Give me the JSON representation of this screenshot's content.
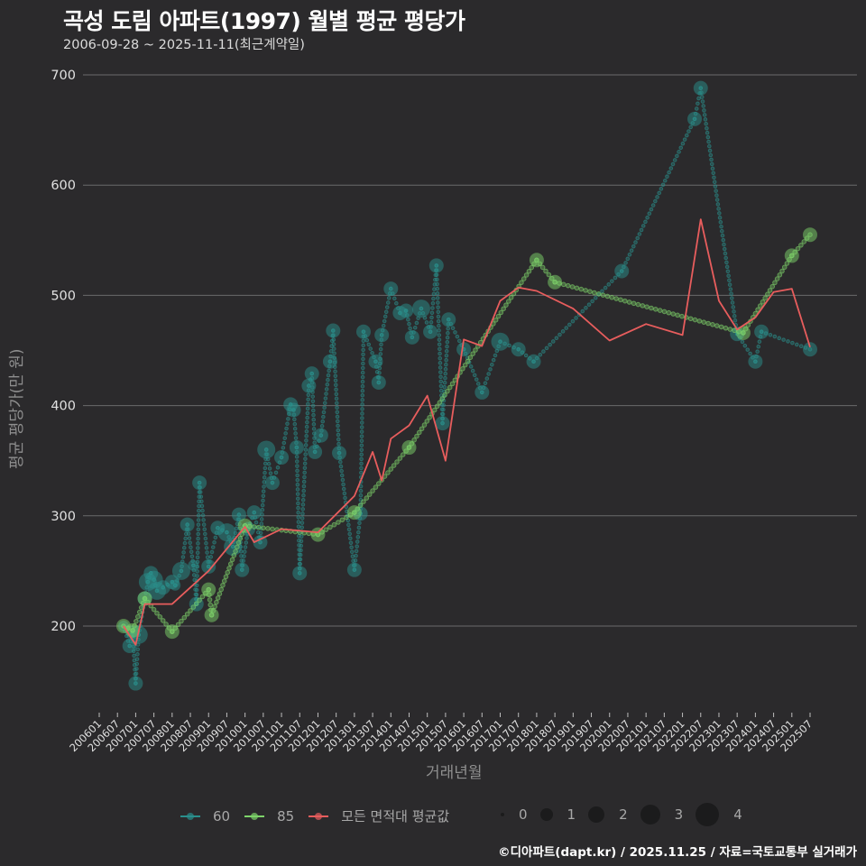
{
  "header": {
    "title": "곡성 도림 아파트(1997) 월별 평균 평당가",
    "subtitle": "2006-09-28 ~ 2025-11-11(최근계약일)"
  },
  "axes": {
    "ylabel": "평균 평당가(만 원)",
    "xlabel": "거래년월"
  },
  "legend": {
    "series": [
      {
        "label": "60",
        "color": "#2a8f8c"
      },
      {
        "label": "85",
        "color": "#7ed46a"
      },
      {
        "label": "모든 면적대 평균값",
        "color": "#e85d5d"
      }
    ],
    "sizes": [
      {
        "label": "0",
        "d": 4
      },
      {
        "label": "1",
        "d": 14
      },
      {
        "label": "2",
        "d": 18
      },
      {
        "label": "3",
        "d": 22
      },
      {
        "label": "4",
        "d": 26
      }
    ]
  },
  "footer": {
    "credit": "©디아파트(dapt.kr) / 2025.11.25 / 자료=국토교통부 실거래가"
  },
  "chart_data": {
    "type": "scatter",
    "title": "곡성 도림 아파트(1997) 월별 평균 평당가",
    "subtitle": "2006-09-28 ~ 2025-11-11(최근계약일)",
    "xlabel": "거래년월",
    "ylabel": "평균 평당가(만 원)",
    "ylim": [
      120,
      710
    ],
    "yticks": [
      200,
      300,
      400,
      500,
      600,
      700
    ],
    "grid": true,
    "legend_position": "bottom",
    "x_ticks": [
      "200601",
      "200607",
      "200701",
      "200707",
      "200801",
      "200807",
      "200901",
      "200907",
      "201001",
      "201007",
      "201101",
      "201107",
      "201201",
      "201207",
      "201301",
      "201307",
      "201401",
      "201407",
      "201501",
      "201507",
      "201601",
      "201607",
      "201701",
      "201707",
      "201801",
      "201807",
      "201901",
      "201907",
      "202001",
      "202007",
      "202101",
      "202107",
      "202201",
      "202207",
      "202301",
      "202307",
      "202401",
      "202407",
      "202501",
      "202507"
    ],
    "series": [
      {
        "name": "60",
        "color": "#2a8f8c",
        "points": [
          [
            "200609",
            200,
            1
          ],
          [
            "200611",
            182,
            2
          ],
          [
            "200612",
            194,
            2
          ],
          [
            "200701",
            148,
            2
          ],
          [
            "200702",
            192,
            3
          ],
          [
            "200704",
            225,
            2
          ],
          [
            "200705",
            240,
            3
          ],
          [
            "200706",
            248,
            2
          ],
          [
            "200707",
            242,
            3
          ],
          [
            "200708",
            232,
            3
          ],
          [
            "200710",
            235,
            2
          ],
          [
            "200801",
            240,
            2
          ],
          [
            "200802",
            237,
            1
          ],
          [
            "200804",
            250,
            3
          ],
          [
            "200806",
            292,
            2
          ],
          [
            "200808",
            255,
            1
          ],
          [
            "200809",
            220,
            2
          ],
          [
            "200810",
            330,
            2
          ],
          [
            "200901",
            254,
            2
          ],
          [
            "200904",
            289,
            2
          ],
          [
            "200907",
            285,
            3
          ],
          [
            "200909",
            272,
            3
          ],
          [
            "200911",
            301,
            2
          ],
          [
            "200912",
            251,
            2
          ],
          [
            "201002",
            288,
            2
          ],
          [
            "201004",
            303,
            2
          ],
          [
            "201006",
            276,
            2
          ],
          [
            "201008",
            360,
            3
          ],
          [
            "201010",
            330,
            2
          ],
          [
            "201101",
            353,
            2
          ],
          [
            "201104",
            401,
            2
          ],
          [
            "201105",
            396,
            2
          ],
          [
            "201106",
            362,
            2
          ],
          [
            "201107",
            248,
            2
          ],
          [
            "201110",
            418,
            2
          ],
          [
            "201111",
            429,
            2
          ],
          [
            "201112",
            358,
            2
          ],
          [
            "201202",
            373,
            2
          ],
          [
            "201205",
            440,
            2
          ],
          [
            "201206",
            468,
            2
          ],
          [
            "201208",
            357,
            2
          ],
          [
            "201301",
            251,
            2
          ],
          [
            "201303",
            302,
            2
          ],
          [
            "201304",
            467,
            2
          ],
          [
            "201308",
            440,
            2
          ],
          [
            "201309",
            421,
            2
          ],
          [
            "201310",
            464,
            2
          ],
          [
            "201401",
            506,
            2
          ],
          [
            "201404",
            484,
            2
          ],
          [
            "201406",
            486,
            2
          ],
          [
            "201408",
            462,
            2
          ],
          [
            "201411",
            488,
            3
          ],
          [
            "201502",
            467,
            2
          ],
          [
            "201504",
            527,
            2
          ],
          [
            "201506",
            384,
            2
          ],
          [
            "201508",
            478,
            2
          ],
          [
            "201601",
            451,
            2
          ],
          [
            "201607",
            412,
            2
          ],
          [
            "201701",
            458,
            3
          ],
          [
            "201707",
            451,
            2
          ],
          [
            "201712",
            440,
            2
          ],
          [
            "202005",
            522,
            2
          ],
          [
            "202205",
            660,
            2
          ],
          [
            "202207",
            688,
            2
          ],
          [
            "202307",
            465,
            2
          ],
          [
            "202401",
            440,
            2
          ],
          [
            "202403",
            467,
            2
          ],
          [
            "202507",
            451,
            2
          ]
        ]
      },
      {
        "name": "85",
        "color": "#7ed46a",
        "points": [
          [
            "200609",
            200,
            2
          ],
          [
            "200612",
            196,
            2
          ],
          [
            "200704",
            225,
            2
          ],
          [
            "200801",
            195,
            2
          ],
          [
            "200901",
            233,
            2
          ],
          [
            "200902",
            210,
            2
          ],
          [
            "201001",
            291,
            2
          ],
          [
            "201201",
            283,
            2
          ],
          [
            "201301",
            303,
            2
          ],
          [
            "201407",
            362,
            2
          ],
          [
            "201801",
            532,
            2
          ],
          [
            "201807",
            512,
            2
          ],
          [
            "202309",
            466,
            2
          ],
          [
            "202501",
            536,
            2
          ],
          [
            "202507",
            555,
            2
          ]
        ]
      },
      {
        "name": "모든 면적대 평균값",
        "color": "#e85d5d",
        "type": "line",
        "points": [
          [
            "200609",
            200
          ],
          [
            "200701",
            183
          ],
          [
            "200704",
            220
          ],
          [
            "200801",
            220
          ],
          [
            "200901",
            250
          ],
          [
            "201001",
            290
          ],
          [
            "201004",
            276
          ],
          [
            "201101",
            288
          ],
          [
            "201201",
            285
          ],
          [
            "201301",
            318
          ],
          [
            "201307",
            358
          ],
          [
            "201310",
            332
          ],
          [
            "201401",
            370
          ],
          [
            "201407",
            382
          ],
          [
            "201501",
            409
          ],
          [
            "201507",
            350
          ],
          [
            "201601",
            460
          ],
          [
            "201607",
            454
          ],
          [
            "201701",
            495
          ],
          [
            "201707",
            507
          ],
          [
            "201801",
            504
          ],
          [
            "201901",
            488
          ],
          [
            "202001",
            459
          ],
          [
            "202101",
            474
          ],
          [
            "202201",
            464
          ],
          [
            "202207",
            569
          ],
          [
            "202301",
            495
          ],
          [
            "202307",
            469
          ],
          [
            "202401",
            480
          ],
          [
            "202407",
            503
          ],
          [
            "202501",
            506
          ],
          [
            "202507",
            453
          ]
        ]
      }
    ]
  }
}
